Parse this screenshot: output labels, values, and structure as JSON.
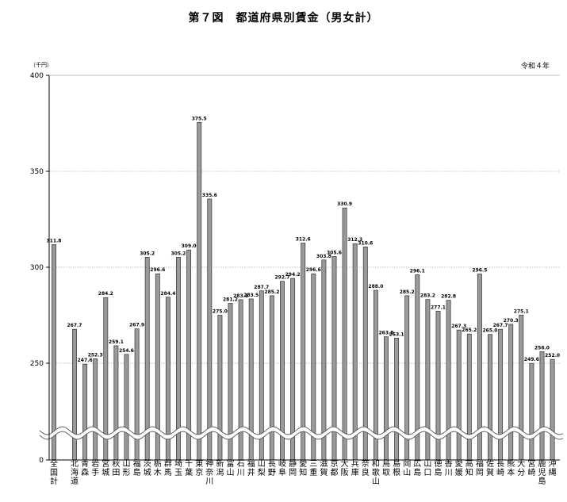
{
  "chart_data": {
    "type": "bar",
    "title": "第７図　都道府県別賃金（男女計）",
    "unit": "（千円）",
    "note": "令和４年",
    "ylim": [
      0,
      400
    ],
    "yticks": [
      0,
      250,
      300,
      350,
      400
    ],
    "axis_break": true,
    "grid": "horizontal dotted",
    "categories": [
      "全国計",
      "北海道",
      "青森",
      "岩手",
      "宮城",
      "秋田",
      "山形",
      "福島",
      "茨城",
      "栃木",
      "群馬",
      "埼玉",
      "千葉",
      "東京",
      "神奈川",
      "新潟",
      "富山",
      "石川",
      "福井",
      "山梨",
      "長野",
      "岐阜",
      "静岡",
      "愛知",
      "三重",
      "滋賀",
      "京都",
      "大阪",
      "兵庫",
      "奈良",
      "和歌山",
      "鳥取",
      "島根",
      "岡山",
      "広島",
      "山口",
      "徳島",
      "香川",
      "愛媛",
      "高知",
      "福岡",
      "佐賀",
      "長崎",
      "熊本",
      "大分",
      "宮崎",
      "鹿児島",
      "沖縄"
    ],
    "values": [
      311.8,
      267.7,
      247.6,
      252.3,
      284.2,
      259.1,
      254.6,
      267.9,
      305.2,
      296.6,
      284.4,
      305.2,
      309.0,
      375.5,
      335.6,
      275.0,
      281.2,
      283.1,
      283.5,
      287.7,
      285.2,
      292.7,
      294.2,
      312.6,
      296.6,
      303.8,
      305.6,
      330.9,
      312.3,
      310.6,
      288.0,
      263.8,
      263.1,
      285.2,
      296.1,
      283.2,
      277.1,
      282.8,
      267.3,
      265.2,
      296.5,
      265.0,
      267.7,
      270.3,
      275.1,
      249.6,
      256.0,
      252.0
    ],
    "value_labels": [
      "311.8",
      "267.7",
      "247.6",
      "252.3",
      "284.2",
      "259.1",
      "254.6",
      "267.9",
      "305.2",
      "296.6",
      "284.4",
      "305.2",
      "309.0",
      "375.5",
      "335.6",
      "275.0",
      "281.2",
      "283.1",
      "283.5",
      "287.7",
      "285.2",
      "292.7",
      "294.2",
      "312.6",
      "296.6",
      "303.8",
      "305.6",
      "330.9",
      "312.3",
      "310.6",
      "288.0",
      "263.8",
      "263.1",
      "285.2",
      "296.1",
      "283.2",
      "277.1",
      "282.8",
      "267.3",
      "265.2",
      "296.5",
      "265.0",
      "267.7",
      "270.3",
      "275.1",
      "249.6",
      "256.0",
      "252.0"
    ],
    "colors": {
      "bar_fill": "#9a9a9a",
      "bar_stroke": "#333333",
      "grid": "#aaaaaa"
    }
  }
}
